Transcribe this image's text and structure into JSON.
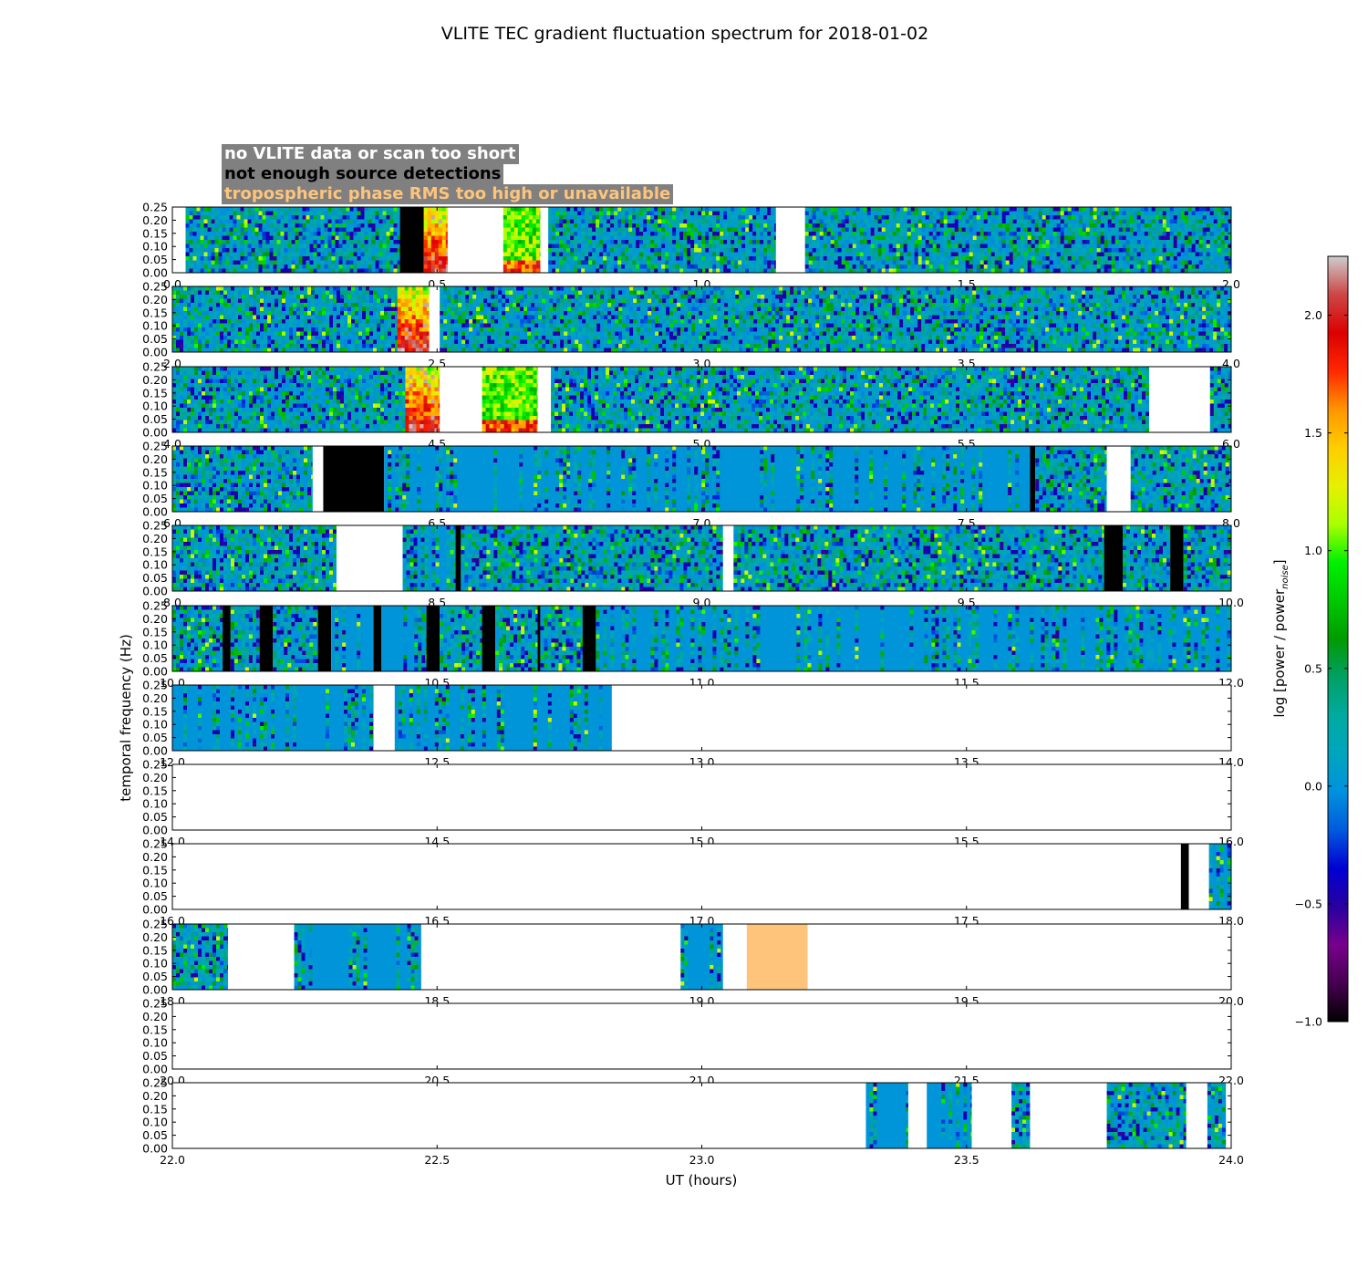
{
  "chart_data": {
    "type": "heatmap",
    "title": "VLITE TEC gradient fluctuation spectrum for 2018-01-02",
    "xlabel": "UT (hours)",
    "ylabel": "temporal frequency (Hz)",
    "colorbar_label": "log [power / power",
    "colorbar_label_sub": "noise",
    "colorbar_label_end": "]",
    "colorbar_range": [
      -1.0,
      2.25
    ],
    "colorbar_ticks": [
      "2.0",
      "1.5",
      "1.0",
      "0.5",
      "0.0",
      "−0.5",
      "−1.0"
    ],
    "colorbar_tick_values": [
      2.0,
      1.5,
      1.0,
      0.5,
      0.0,
      -0.5,
      -1.0
    ],
    "colormap": "nipy_spectral",
    "y_range": [
      0,
      0.25
    ],
    "y_ticks": [
      "0.25",
      "0.20",
      "0.15",
      "0.10",
      "0.05",
      "0.00"
    ],
    "y_tick_values": [
      0.25,
      0.2,
      0.15,
      0.1,
      0.05,
      0.0
    ],
    "legend": [
      {
        "label": "no VLITE data or scan too short",
        "color": "#ffffff"
      },
      {
        "label": "not enough source detections",
        "color": "#000000"
      },
      {
        "label": "tropospheric phase RMS too high or unavailable",
        "color": "#fec47b"
      }
    ],
    "panels": [
      {
        "x_range": [
          0,
          2
        ],
        "x_ticks": [
          "0.0",
          "0.5",
          "1.0",
          "1.5",
          "2.0"
        ],
        "segments": [
          {
            "start": 0.0,
            "end": 0.025,
            "kind": "nodata"
          },
          {
            "start": 0.025,
            "end": 0.43,
            "kind": "data"
          },
          {
            "start": 0.43,
            "end": 0.475,
            "kind": "detections"
          },
          {
            "start": 0.475,
            "end": 0.52,
            "kind": "hot"
          },
          {
            "start": 0.52,
            "end": 0.625,
            "kind": "nodata"
          },
          {
            "start": 0.625,
            "end": 0.695,
            "kind": "warm"
          },
          {
            "start": 0.695,
            "end": 0.71,
            "kind": "nodata"
          },
          {
            "start": 0.71,
            "end": 1.14,
            "kind": "data"
          },
          {
            "start": 1.14,
            "end": 1.195,
            "kind": "nodata"
          },
          {
            "start": 1.195,
            "end": 2.0,
            "kind": "data"
          }
        ]
      },
      {
        "x_range": [
          2,
          4
        ],
        "x_ticks": [
          "2.0",
          "2.5",
          "3.0",
          "3.5",
          "4.0"
        ],
        "segments": [
          {
            "start": 2.0,
            "end": 2.425,
            "kind": "data"
          },
          {
            "start": 2.425,
            "end": 2.485,
            "kind": "hot"
          },
          {
            "start": 2.485,
            "end": 2.505,
            "kind": "nodata"
          },
          {
            "start": 2.505,
            "end": 4.0,
            "kind": "data"
          }
        ]
      },
      {
        "x_range": [
          4,
          6
        ],
        "x_ticks": [
          "4.0",
          "4.5",
          "5.0",
          "5.5",
          "6.0"
        ],
        "segments": [
          {
            "start": 4.0,
            "end": 4.44,
            "kind": "data"
          },
          {
            "start": 4.44,
            "end": 4.505,
            "kind": "hot"
          },
          {
            "start": 4.505,
            "end": 4.585,
            "kind": "nodata"
          },
          {
            "start": 4.585,
            "end": 4.69,
            "kind": "warm"
          },
          {
            "start": 4.69,
            "end": 4.715,
            "kind": "nodata"
          },
          {
            "start": 4.715,
            "end": 5.845,
            "kind": "data"
          },
          {
            "start": 5.845,
            "end": 5.96,
            "kind": "nodata"
          },
          {
            "start": 5.96,
            "end": 6.0,
            "kind": "data"
          }
        ]
      },
      {
        "x_range": [
          6,
          8
        ],
        "x_ticks": [
          "6.0",
          "6.5",
          "7.0",
          "7.5",
          "8.0"
        ],
        "segments": [
          {
            "start": 6.0,
            "end": 6.265,
            "kind": "data"
          },
          {
            "start": 6.265,
            "end": 6.285,
            "kind": "nodata"
          },
          {
            "start": 6.285,
            "end": 6.4,
            "kind": "detections"
          },
          {
            "start": 6.4,
            "end": 7.62,
            "kind": "mixed"
          },
          {
            "start": 7.62,
            "end": 7.63,
            "kind": "detections"
          },
          {
            "start": 7.63,
            "end": 7.765,
            "kind": "data"
          },
          {
            "start": 7.765,
            "end": 7.81,
            "kind": "nodata"
          },
          {
            "start": 7.81,
            "end": 8.0,
            "kind": "data"
          }
        ]
      },
      {
        "x_range": [
          8,
          10
        ],
        "x_ticks": [
          "8.0",
          "8.5",
          "9.0",
          "9.5",
          "10.0"
        ],
        "segments": [
          {
            "start": 8.0,
            "end": 8.31,
            "kind": "data"
          },
          {
            "start": 8.31,
            "end": 8.435,
            "kind": "nodata"
          },
          {
            "start": 8.435,
            "end": 8.535,
            "kind": "mixed"
          },
          {
            "start": 8.535,
            "end": 8.545,
            "kind": "detections"
          },
          {
            "start": 8.545,
            "end": 9.04,
            "kind": "data"
          },
          {
            "start": 9.04,
            "end": 9.06,
            "kind": "nodata"
          },
          {
            "start": 9.06,
            "end": 9.76,
            "kind": "data"
          },
          {
            "start": 9.76,
            "end": 9.795,
            "kind": "detections"
          },
          {
            "start": 9.795,
            "end": 9.885,
            "kind": "data"
          },
          {
            "start": 9.885,
            "end": 9.91,
            "kind": "detections"
          },
          {
            "start": 9.91,
            "end": 10.0,
            "kind": "data"
          }
        ]
      },
      {
        "x_range": [
          10,
          12
        ],
        "x_ticks": [
          "10.0",
          "10.5",
          "11.0",
          "11.5",
          "12.0"
        ],
        "segments": [
          {
            "start": 10.0,
            "end": 10.095,
            "kind": "data"
          },
          {
            "start": 10.095,
            "end": 10.11,
            "kind": "detections"
          },
          {
            "start": 10.11,
            "end": 10.165,
            "kind": "data"
          },
          {
            "start": 10.165,
            "end": 10.19,
            "kind": "detections"
          },
          {
            "start": 10.19,
            "end": 10.275,
            "kind": "data"
          },
          {
            "start": 10.275,
            "end": 10.3,
            "kind": "detections"
          },
          {
            "start": 10.3,
            "end": 10.38,
            "kind": "mixed"
          },
          {
            "start": 10.38,
            "end": 10.395,
            "kind": "detections"
          },
          {
            "start": 10.395,
            "end": 10.48,
            "kind": "mixed"
          },
          {
            "start": 10.48,
            "end": 10.505,
            "kind": "detections"
          },
          {
            "start": 10.505,
            "end": 10.585,
            "kind": "data"
          },
          {
            "start": 10.585,
            "end": 10.61,
            "kind": "detections"
          },
          {
            "start": 10.61,
            "end": 10.69,
            "kind": "data"
          },
          {
            "start": 10.69,
            "end": 10.695,
            "kind": "detections"
          },
          {
            "start": 10.695,
            "end": 10.775,
            "kind": "data"
          },
          {
            "start": 10.775,
            "end": 10.8,
            "kind": "detections"
          },
          {
            "start": 10.8,
            "end": 12.0,
            "kind": "mixed"
          }
        ]
      },
      {
        "x_range": [
          12,
          14
        ],
        "x_ticks": [
          "12.0",
          "12.5",
          "13.0",
          "13.5",
          "14.0"
        ],
        "segments": [
          {
            "start": 12.0,
            "end": 12.38,
            "kind": "mixed"
          },
          {
            "start": 12.38,
            "end": 12.42,
            "kind": "nodata"
          },
          {
            "start": 12.42,
            "end": 12.83,
            "kind": "mixed"
          },
          {
            "start": 12.83,
            "end": 14.0,
            "kind": "nodata"
          }
        ]
      },
      {
        "x_range": [
          14,
          16
        ],
        "x_ticks": [
          "14.0",
          "14.5",
          "15.0",
          "15.5",
          "16.0"
        ],
        "segments": [
          {
            "start": 14.0,
            "end": 16.0,
            "kind": "nodata"
          }
        ]
      },
      {
        "x_range": [
          16,
          18
        ],
        "x_ticks": [
          "16.0",
          "16.5",
          "17.0",
          "17.5",
          "18.0"
        ],
        "segments": [
          {
            "start": 16.0,
            "end": 17.905,
            "kind": "nodata"
          },
          {
            "start": 17.905,
            "end": 17.92,
            "kind": "detections"
          },
          {
            "start": 17.92,
            "end": 17.958,
            "kind": "nodata"
          },
          {
            "start": 17.958,
            "end": 18.0,
            "kind": "mixed"
          }
        ]
      },
      {
        "x_range": [
          18,
          20
        ],
        "x_ticks": [
          "18.0",
          "18.5",
          "19.0",
          "19.5",
          "20.0"
        ],
        "segments": [
          {
            "start": 18.0,
            "end": 18.105,
            "kind": "data"
          },
          {
            "start": 18.105,
            "end": 18.23,
            "kind": "nodata"
          },
          {
            "start": 18.23,
            "end": 18.47,
            "kind": "mixed"
          },
          {
            "start": 18.47,
            "end": 18.96,
            "kind": "nodata"
          },
          {
            "start": 18.96,
            "end": 19.04,
            "kind": "mixed"
          },
          {
            "start": 19.04,
            "end": 19.085,
            "kind": "nodata"
          },
          {
            "start": 19.085,
            "end": 19.2,
            "kind": "tropo"
          },
          {
            "start": 19.2,
            "end": 20.0,
            "kind": "nodata"
          }
        ]
      },
      {
        "x_range": [
          20,
          22
        ],
        "x_ticks": [
          "20.0",
          "20.5",
          "21.0",
          "21.5",
          "22.0"
        ],
        "segments": [
          {
            "start": 20.0,
            "end": 22.0,
            "kind": "nodata"
          }
        ]
      },
      {
        "x_range": [
          22,
          24
        ],
        "x_ticks": [
          "22.0",
          "22.5",
          "23.0",
          "23.5",
          "24.0"
        ],
        "segments": [
          {
            "start": 22.0,
            "end": 23.31,
            "kind": "nodata"
          },
          {
            "start": 23.31,
            "end": 23.39,
            "kind": "mixed"
          },
          {
            "start": 23.39,
            "end": 23.425,
            "kind": "nodata"
          },
          {
            "start": 23.425,
            "end": 23.51,
            "kind": "mixed"
          },
          {
            "start": 23.51,
            "end": 23.585,
            "kind": "nodata"
          },
          {
            "start": 23.585,
            "end": 23.62,
            "kind": "data"
          },
          {
            "start": 23.62,
            "end": 23.765,
            "kind": "nodata"
          },
          {
            "start": 23.765,
            "end": 23.915,
            "kind": "data"
          },
          {
            "start": 23.915,
            "end": 23.955,
            "kind": "nodata"
          },
          {
            "start": 23.955,
            "end": 23.99,
            "kind": "data"
          },
          {
            "start": 23.99,
            "end": 24.0,
            "kind": "nodata"
          }
        ]
      }
    ]
  }
}
